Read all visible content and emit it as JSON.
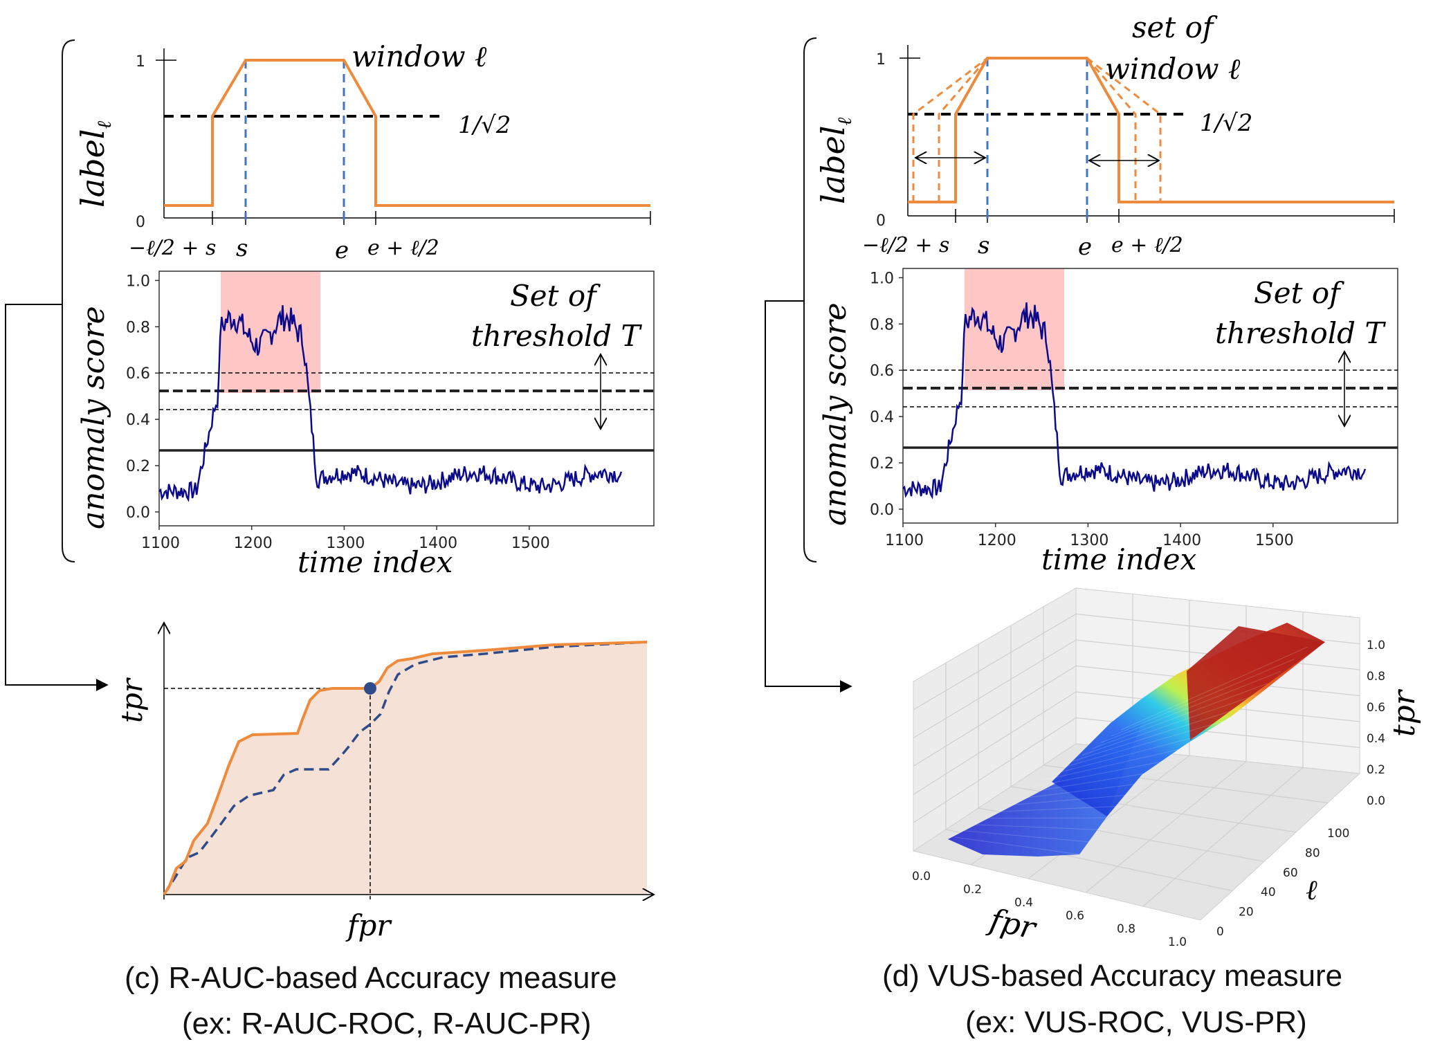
{
  "panels": [
    {
      "id": "c",
      "label_plot": {
        "y_ticks": [
          "0",
          "1"
        ],
        "x_ticks": [
          "−ℓ/2 + s",
          "s",
          "e",
          "e + ℓ/2"
        ],
        "y_label": "label",
        "y_label_sub": "ℓ",
        "annotation_line1": "window ℓ",
        "annotation_line2": "",
        "threshold_label": "1/√2"
      },
      "score_plot": {
        "y_ticks": [
          "0.0",
          "0.2",
          "0.4",
          "0.6",
          "0.8",
          "1.0"
        ],
        "x_ticks": [
          "1100",
          "1200",
          "1300",
          "1400",
          "1500"
        ],
        "y_label": "anomaly score",
        "x_label": "time index",
        "annotation_line1": "Set of",
        "annotation_line2": "threshold T"
      },
      "curve_plot": {
        "x_label": "fpr",
        "y_label": "tpr"
      },
      "caption_line1": "(c) R-AUC-based Accuracy measure",
      "caption_line2": "(ex: R-AUC-ROC, R-AUC-PR)"
    },
    {
      "id": "d",
      "label_plot": {
        "y_ticks": [
          "0",
          "1"
        ],
        "x_ticks": [
          "−ℓ/2 + s",
          "s",
          "e",
          "e + ℓ/2"
        ],
        "y_label": "label",
        "y_label_sub": "ℓ",
        "annotation_line1": "set of",
        "annotation_line2": "window ℓ",
        "threshold_label": "1/√2"
      },
      "score_plot": {
        "y_ticks": [
          "0.0",
          "0.2",
          "0.4",
          "0.6",
          "0.8",
          "1.0"
        ],
        "x_ticks": [
          "1100",
          "1200",
          "1300",
          "1400",
          "1500"
        ],
        "y_label": "anomaly score",
        "x_label": "time index",
        "annotation_line1": "Set of",
        "annotation_line2": "threshold T"
      },
      "surface_plot": {
        "fpr_ticks": [
          "0.0",
          "0.2",
          "0.4",
          "0.6",
          "0.8",
          "1.0"
        ],
        "tpr_ticks": [
          "0.0",
          "0.2",
          "0.4",
          "0.6",
          "0.8",
          "1.0"
        ],
        "l_ticks": [
          "0",
          "20",
          "40",
          "60",
          "80",
          "100"
        ],
        "x_label": "fpr",
        "y_label": "ℓ",
        "z_label": "tpr"
      },
      "caption_line1": "(d) VUS-based Accuracy measure",
      "caption_line2": "(ex: VUS-ROC, VUS-PR)"
    }
  ],
  "colors": {
    "label_curve": "#ee8a3c",
    "window_lines": "#4472c4",
    "threshold_dash": "#000000",
    "score_series": "#0a0a8a",
    "anomaly_band": "#ffb3b3",
    "roc_fill": "#f5e1d6",
    "roc_dashed": "#2f4b8a"
  }
}
